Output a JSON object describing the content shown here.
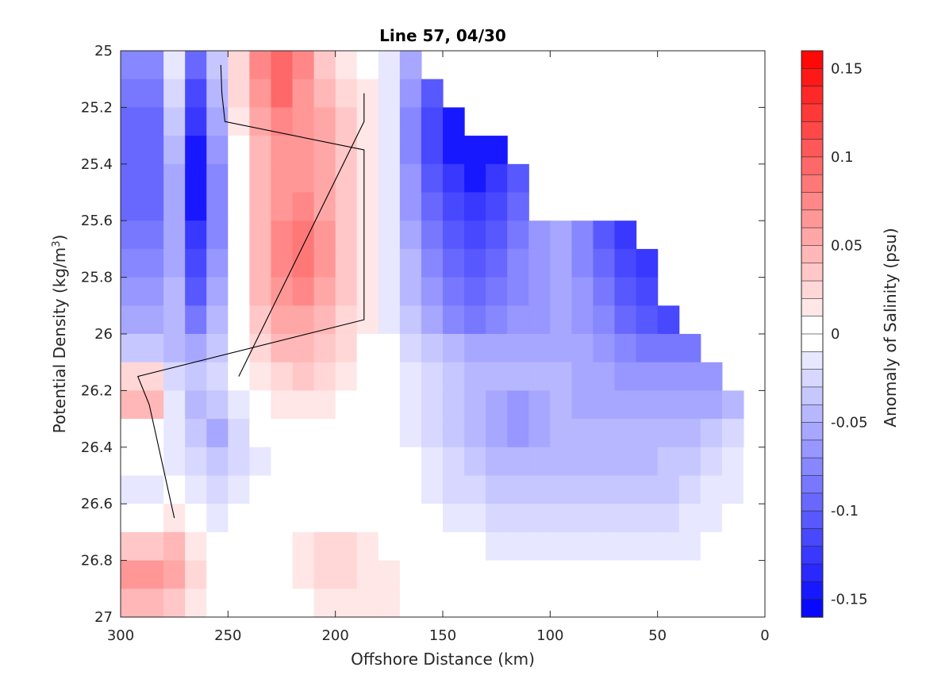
{
  "chart_data": {
    "type": "heatmap",
    "subtype": "filled-contour-section",
    "title": "Line 57, 04/30",
    "xlabel": "Offshore Distance (km)",
    "ylabel_main": "Potential Density (kg/m",
    "ylabel_sup": "3",
    "ylabel_end": ")",
    "xlim": [
      0,
      300
    ],
    "x_reversed": true,
    "ylim": [
      25,
      27
    ],
    "y_reversed": true,
    "xticks": [
      300,
      250,
      200,
      150,
      100,
      50,
      0
    ],
    "yticks": [
      25,
      25.2,
      25.4,
      25.6,
      25.8,
      26,
      26.2,
      26.4,
      26.6,
      26.8,
      27
    ],
    "xtick_labels": [
      "300",
      "250",
      "200",
      "150",
      "100",
      "50",
      "0"
    ],
    "ytick_labels": [
      "25",
      "25.2",
      "25.4",
      "25.6",
      "25.8",
      "26",
      "26.2",
      "26.4",
      "26.6",
      "26.8",
      "27"
    ],
    "colorbar": {
      "label": "Anomaly of Salinity (psu)",
      "clim": [
        -0.16,
        0.16
      ],
      "ticks": [
        0.15,
        0.1,
        0.05,
        0,
        -0.05,
        -0.1,
        -0.15
      ],
      "tick_labels": [
        "0.15",
        "0.1",
        "0.05",
        "0",
        "-0.05",
        "-0.1",
        "-0.15"
      ],
      "levels": 32,
      "negative_color": "#0000ff",
      "positive_color": "#ff0000",
      "zero_color": "#ffffff"
    },
    "field": {
      "density_levels": [
        25.0,
        25.1,
        25.2,
        25.3,
        25.4,
        25.5,
        25.6,
        25.7,
        25.8,
        25.9,
        26.0,
        26.1,
        26.2,
        26.3,
        26.4,
        26.5,
        26.6,
        26.7,
        26.8,
        26.9
      ],
      "distance_km": [
        300,
        280,
        270,
        260,
        250,
        240,
        230,
        220,
        210,
        200,
        190,
        180,
        170,
        160,
        150,
        140,
        130,
        120,
        110,
        100,
        90,
        80,
        70,
        60,
        50,
        40,
        30,
        20,
        10,
        0
      ],
      "note": "",
      "rows": [
        [
          -0.08,
          -0.02,
          -0.1,
          -0.04,
          0.02,
          0.07,
          0.09,
          0.07,
          0.03,
          0.01,
          0.0,
          -0.02,
          -0.06,
          -0.1,
          -0.12,
          -0.14,
          -0.15,
          -0.14,
          -0.13,
          -0.12,
          -0.12,
          -0.11,
          -0.1,
          -0.09,
          -0.08,
          -0.07,
          -0.05,
          -0.03,
          -0.02,
          -0.01
        ],
        [
          -0.09,
          -0.03,
          -0.12,
          -0.05,
          0.02,
          0.06,
          0.09,
          0.06,
          0.04,
          0.02,
          0.01,
          -0.02,
          -0.07,
          -0.11,
          -0.13,
          -0.15,
          -0.15,
          -0.14,
          -0.13,
          -0.12,
          -0.12,
          -0.11,
          -0.1,
          -0.09,
          -0.08,
          -0.07,
          -0.05,
          -0.03,
          -0.02,
          -0.01
        ],
        [
          -0.1,
          -0.04,
          -0.13,
          -0.06,
          0.01,
          0.05,
          0.07,
          0.06,
          0.05,
          0.03,
          0.01,
          -0.02,
          -0.08,
          -0.12,
          -0.14,
          -0.16,
          -0.15,
          -0.13,
          -0.12,
          -0.11,
          -0.11,
          -0.1,
          -0.1,
          -0.09,
          -0.08,
          -0.07,
          -0.05,
          -0.03,
          -0.02,
          -0.01
        ],
        [
          -0.1,
          -0.05,
          -0.14,
          -0.07,
          0.0,
          0.04,
          0.06,
          0.06,
          0.05,
          0.03,
          0.01,
          -0.02,
          -0.08,
          -0.12,
          -0.14,
          -0.15,
          -0.14,
          -0.12,
          -0.11,
          -0.1,
          -0.1,
          -0.1,
          -0.09,
          -0.09,
          -0.08,
          -0.07,
          -0.05,
          -0.03,
          -0.02,
          -0.01
        ],
        [
          -0.1,
          -0.06,
          -0.15,
          -0.08,
          0.0,
          0.04,
          0.06,
          0.06,
          0.05,
          0.03,
          0.01,
          -0.02,
          -0.07,
          -0.11,
          -0.13,
          -0.14,
          -0.13,
          -0.11,
          -0.07,
          -0.06,
          -0.09,
          -0.12,
          -0.13,
          -0.12,
          -0.1,
          -0.08,
          -0.06,
          -0.04,
          -0.02,
          -0.01
        ],
        [
          -0.1,
          -0.06,
          -0.14,
          -0.08,
          0.0,
          0.04,
          0.06,
          0.07,
          0.05,
          0.03,
          0.01,
          -0.02,
          -0.07,
          -0.1,
          -0.12,
          -0.13,
          -0.12,
          -0.1,
          -0.07,
          -0.06,
          -0.09,
          -0.12,
          -0.14,
          -0.13,
          -0.11,
          -0.09,
          -0.07,
          -0.05,
          -0.03,
          -0.02
        ],
        [
          -0.09,
          -0.06,
          -0.13,
          -0.08,
          0.0,
          0.04,
          0.07,
          0.08,
          0.06,
          0.03,
          0.01,
          -0.02,
          -0.06,
          -0.09,
          -0.11,
          -0.12,
          -0.11,
          -0.09,
          -0.07,
          -0.06,
          -0.08,
          -0.11,
          -0.13,
          -0.13,
          -0.12,
          -0.1,
          -0.08,
          -0.06,
          -0.04,
          -0.02
        ],
        [
          -0.08,
          -0.06,
          -0.12,
          -0.07,
          0.0,
          0.04,
          0.07,
          0.08,
          0.06,
          0.03,
          0.01,
          -0.02,
          -0.05,
          -0.08,
          -0.1,
          -0.11,
          -0.1,
          -0.08,
          -0.07,
          -0.06,
          -0.08,
          -0.1,
          -0.12,
          -0.13,
          -0.13,
          -0.11,
          -0.09,
          -0.07,
          -0.05,
          -0.03
        ],
        [
          -0.07,
          -0.05,
          -0.11,
          -0.06,
          0.0,
          0.04,
          0.06,
          0.07,
          0.05,
          0.03,
          0.01,
          -0.02,
          -0.05,
          -0.07,
          -0.09,
          -0.1,
          -0.09,
          -0.08,
          -0.07,
          -0.06,
          -0.07,
          -0.09,
          -0.11,
          -0.12,
          -0.13,
          -0.12,
          -0.1,
          -0.08,
          -0.06,
          -0.04
        ],
        [
          -0.06,
          -0.05,
          -0.09,
          -0.05,
          0.0,
          0.03,
          0.05,
          0.05,
          0.04,
          0.02,
          0.01,
          -0.02,
          -0.04,
          -0.06,
          -0.08,
          -0.09,
          -0.08,
          -0.07,
          -0.07,
          -0.06,
          -0.07,
          -0.08,
          -0.1,
          -0.11,
          -0.12,
          -0.11,
          -0.1,
          -0.08,
          -0.06,
          -0.04
        ],
        [
          -0.04,
          -0.05,
          -0.06,
          -0.04,
          0.0,
          0.02,
          0.04,
          0.04,
          0.03,
          0.02,
          0.0,
          -0.01,
          -0.03,
          -0.04,
          -0.05,
          -0.06,
          -0.06,
          -0.06,
          -0.06,
          -0.06,
          -0.06,
          -0.07,
          -0.08,
          -0.09,
          -0.09,
          -0.09,
          -0.08,
          -0.07,
          -0.06,
          -0.04
        ],
        [
          0.02,
          -0.03,
          -0.04,
          -0.03,
          -0.01,
          0.01,
          0.02,
          0.03,
          0.02,
          0.01,
          0.0,
          -0.01,
          -0.02,
          -0.03,
          -0.04,
          -0.05,
          -0.05,
          -0.05,
          -0.05,
          -0.05,
          -0.06,
          -0.06,
          -0.07,
          -0.07,
          -0.07,
          -0.07,
          -0.07,
          -0.06,
          -0.05,
          -0.04
        ],
        [
          0.04,
          -0.02,
          -0.05,
          -0.04,
          -0.02,
          0.0,
          0.01,
          0.01,
          0.01,
          0.0,
          0.0,
          -0.01,
          -0.02,
          -0.03,
          -0.04,
          -0.05,
          -0.06,
          -0.07,
          -0.06,
          -0.05,
          -0.06,
          -0.06,
          -0.06,
          -0.06,
          -0.06,
          -0.06,
          -0.06,
          -0.05,
          -0.04,
          -0.03
        ],
        [
          0.0,
          -0.02,
          -0.04,
          -0.06,
          -0.03,
          -0.01,
          0.0,
          0.0,
          0.0,
          0.0,
          0.0,
          -0.01,
          -0.02,
          -0.03,
          -0.04,
          -0.05,
          -0.06,
          -0.07,
          -0.06,
          -0.05,
          -0.05,
          -0.05,
          -0.05,
          -0.05,
          -0.05,
          -0.05,
          -0.04,
          -0.03,
          -0.02,
          -0.01
        ],
        [
          -0.01,
          -0.02,
          -0.03,
          -0.04,
          -0.03,
          -0.02,
          -0.01,
          0.0,
          0.0,
          0.0,
          0.0,
          -0.01,
          -0.01,
          -0.02,
          -0.03,
          -0.04,
          -0.05,
          -0.05,
          -0.05,
          -0.05,
          -0.05,
          -0.05,
          -0.05,
          -0.05,
          -0.04,
          -0.04,
          -0.03,
          -0.02,
          -0.01,
          -0.01
        ],
        [
          -0.02,
          -0.01,
          -0.02,
          -0.03,
          -0.02,
          -0.01,
          -0.01,
          0.0,
          0.0,
          0.0,
          0.0,
          0.0,
          -0.01,
          -0.02,
          -0.03,
          -0.03,
          -0.04,
          -0.04,
          -0.04,
          -0.04,
          -0.04,
          -0.04,
          -0.04,
          -0.04,
          -0.04,
          -0.03,
          -0.02,
          -0.02,
          -0.01,
          -0.01
        ],
        [
          0.0,
          0.01,
          -0.01,
          -0.02,
          -0.01,
          0.0,
          0.0,
          0.0,
          0.0,
          0.0,
          0.0,
          0.0,
          0.0,
          -0.01,
          -0.02,
          -0.02,
          -0.03,
          -0.03,
          -0.03,
          -0.03,
          -0.03,
          -0.03,
          -0.03,
          -0.03,
          -0.03,
          -0.02,
          -0.02,
          -0.01,
          -0.01,
          0.0
        ],
        [
          0.03,
          0.04,
          0.01,
          0.0,
          0.0,
          0.0,
          0.0,
          0.01,
          0.02,
          0.02,
          0.01,
          0.0,
          0.0,
          -0.01,
          -0.01,
          -0.01,
          -0.02,
          -0.02,
          -0.02,
          -0.02,
          -0.02,
          -0.02,
          -0.02,
          -0.02,
          -0.02,
          -0.02,
          -0.01,
          -0.01,
          0.0,
          0.0
        ],
        [
          0.06,
          0.05,
          0.02,
          0.0,
          -0.01,
          -0.01,
          0.0,
          0.01,
          0.02,
          0.02,
          0.01,
          0.01,
          0.0,
          0.0,
          0.0,
          -0.01,
          -0.01,
          -0.01,
          -0.01,
          -0.01,
          -0.01,
          -0.01,
          -0.01,
          -0.01,
          -0.01,
          0.0,
          0.0,
          0.0,
          0.0,
          0.0
        ],
        [
          0.04,
          0.03,
          0.01,
          0.0,
          -0.01,
          -0.01,
          0.0,
          0.0,
          0.01,
          0.01,
          0.01,
          0.01,
          0.0,
          0.0,
          0.0,
          0.0,
          0.0,
          0.0,
          0.0,
          0.0,
          0.0,
          0.0,
          0.0,
          0.0,
          0.0,
          0.0,
          0.0,
          0.0,
          0.0,
          0.0
        ]
      ],
      "valid_max_distance_by_row": [
        300,
        300,
        300,
        300,
        300,
        300,
        300,
        300,
        300,
        300,
        300,
        300,
        300,
        300,
        300,
        300,
        300,
        300,
        300,
        300
      ],
      "valid_min_distance_by_row": [
        170,
        160,
        150,
        130,
        120,
        120,
        65,
        60,
        55,
        50,
        40,
        30,
        20,
        15,
        0,
        0,
        0,
        0,
        0,
        0
      ]
    },
    "zero_contours": "anomaly = 0 drawn as thin black lines"
  }
}
